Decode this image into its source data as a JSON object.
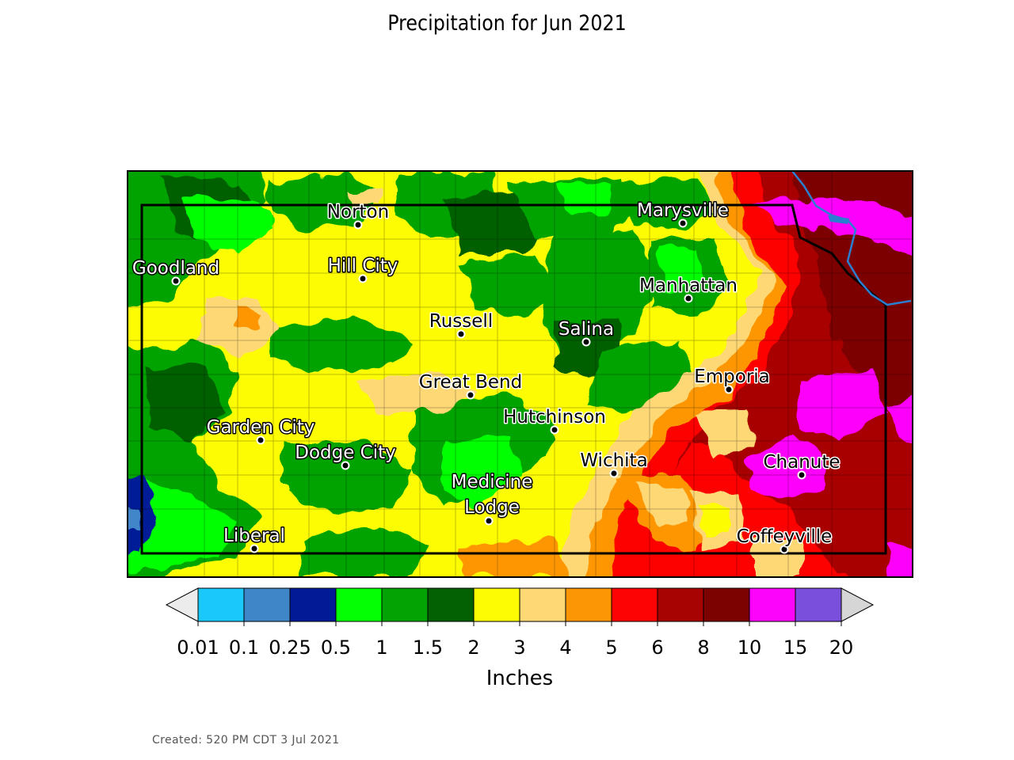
{
  "title": "Precipitation for Jun 2021",
  "created": "Created: 520 PM CDT 3 Jul 2021",
  "legend": {
    "unit_label": "Inches",
    "ticks": [
      "0.01",
      "0.1",
      "0.25",
      "0.5",
      "1",
      "1.5",
      "2",
      "3",
      "4",
      "5",
      "6",
      "8",
      "10",
      "15",
      "20"
    ],
    "bin_colors": [
      "#1ac8fc",
      "#3f86c8",
      "#021a96",
      "#04ff04",
      "#04a304",
      "#036103",
      "#fdfc03",
      "#fdd874",
      "#fd9605",
      "#fd0303",
      "#a80303",
      "#7c0202",
      "#fc03fc",
      "#7a4fdc"
    ],
    "under_color": "#ececec",
    "over_color": "#d6d6d6"
  },
  "cities": [
    {
      "name": "Norton",
      "style": "dark"
    },
    {
      "name": "Marysville",
      "style": "light"
    },
    {
      "name": "Goodland",
      "style": "light"
    },
    {
      "name": "Hill City",
      "style": "light"
    },
    {
      "name": "Manhattan",
      "style": "dark"
    },
    {
      "name": "Russell",
      "style": "dark"
    },
    {
      "name": "Salina",
      "style": "light"
    },
    {
      "name": "Great Bend",
      "style": "dark"
    },
    {
      "name": "Emporia",
      "style": "dark"
    },
    {
      "name": "Hutchinson",
      "style": "dark"
    },
    {
      "name": "Garden City",
      "style": "light"
    },
    {
      "name": "Dodge City",
      "style": "light"
    },
    {
      "name": "Wichita",
      "style": "dark"
    },
    {
      "name": "Chanute",
      "style": "dark"
    },
    {
      "name": "Medicine Lodge",
      "style": "light"
    },
    {
      "name": "Liberal",
      "style": "light"
    },
    {
      "name": "Coffeyville",
      "style": "dark"
    }
  ]
}
